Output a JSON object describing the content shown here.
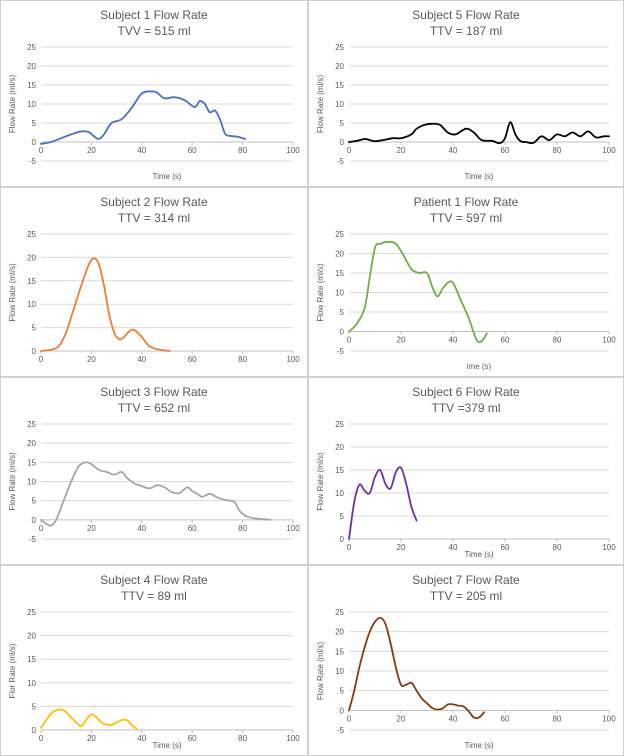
{
  "chart_data": [
    {
      "type": "line",
      "title": "Subject 1 Flow Rate",
      "subtitle": "TVV = 515 ml",
      "xlabel": "Time (s)",
      "ylabel": "Flow Rate (ml/s)",
      "xlim": [
        0,
        100
      ],
      "ylim": [
        -5,
        25
      ],
      "xticks": [
        0,
        20,
        40,
        60,
        80,
        100
      ],
      "yticks": [
        -5,
        0,
        5,
        10,
        15,
        20,
        25
      ],
      "grid": true,
      "series": [
        {
          "name": "Subject 1",
          "color": "#4472C4",
          "x": [
            0,
            4,
            8,
            12,
            16,
            19,
            21,
            23,
            25,
            28,
            32,
            36,
            40,
            44,
            46,
            49,
            53,
            57,
            61,
            63,
            65,
            67,
            69,
            71,
            73,
            75,
            78,
            81
          ],
          "y": [
            -0.5,
            0,
            1,
            2,
            2.8,
            2.6,
            1.5,
            0.8,
            2,
            5,
            6,
            9,
            12.8,
            13.3,
            13,
            11.5,
            11.8,
            11,
            9.2,
            10.8,
            10,
            7.8,
            8.3,
            6,
            2.2,
            1.6,
            1.4,
            0.8
          ]
        }
      ]
    },
    {
      "type": "line",
      "title": "Subject 5 Flow Rate",
      "subtitle": "TTV = 187 ml",
      "xlabel": "Time (s)",
      "ylabel": "Flow Rate (ml/s)",
      "xlim": [
        0,
        100
      ],
      "ylim": [
        -5,
        25
      ],
      "xticks": [
        0,
        20,
        40,
        60,
        80,
        100
      ],
      "yticks": [
        -5,
        0,
        5,
        10,
        15,
        20,
        25
      ],
      "grid": true,
      "series": [
        {
          "name": "Subject 5",
          "color": "#000000",
          "x": [
            0,
            3,
            6,
            8,
            10,
            13,
            17,
            20,
            24,
            26,
            29,
            32,
            35,
            38,
            41,
            45,
            48,
            51,
            55,
            58,
            60,
            62,
            64,
            66,
            68,
            71,
            74,
            77,
            80,
            83,
            86,
            89,
            92,
            95,
            98,
            100
          ],
          "y": [
            0,
            0.3,
            0.8,
            0.5,
            0.2,
            0.5,
            1,
            1,
            2,
            3.5,
            4.5,
            4.8,
            4.5,
            2.5,
            2,
            3.5,
            2.5,
            0.5,
            0.3,
            -0.3,
            1,
            5.2,
            2,
            0.2,
            0,
            -0.2,
            1.5,
            0.5,
            2,
            1.5,
            2.5,
            1.5,
            2.8,
            1.2,
            1.5,
            1.5
          ]
        }
      ]
    },
    {
      "type": "line",
      "title": "Subject 2 Flow Rate",
      "subtitle": "TTV =  314 ml",
      "xlabel": "",
      "ylabel": "Flow Rate (ml/s)",
      "xlim": [
        0,
        100
      ],
      "ylim": [
        0,
        25
      ],
      "xticks": [
        0,
        20,
        40,
        60,
        80,
        100
      ],
      "yticks": [
        0,
        5,
        10,
        15,
        20,
        25
      ],
      "grid": true,
      "series": [
        {
          "name": "Subject 2",
          "color": "#ED7D31",
          "x": [
            0,
            4,
            7,
            10,
            13,
            16,
            19,
            21,
            23,
            25,
            27,
            29,
            31,
            33,
            35,
            37,
            40,
            43,
            47,
            51
          ],
          "y": [
            0,
            0.3,
            1,
            4,
            9,
            14,
            18.5,
            19.8,
            18.5,
            14,
            8,
            4,
            2.5,
            3,
            4.2,
            4.5,
            3,
            1,
            0.3,
            0
          ]
        }
      ]
    },
    {
      "type": "line",
      "title": "Patient 1 Flow Rate",
      "subtitle": "TTV = 597 ml",
      "xlabel": "ime (s)",
      "ylabel": "Flow Rate (ml/s)",
      "xlim": [
        0,
        100
      ],
      "ylim": [
        -5,
        25
      ],
      "xticks": [
        0,
        20,
        40,
        60,
        80,
        100
      ],
      "yticks": [
        -5,
        0,
        5,
        10,
        15,
        20,
        25
      ],
      "grid": true,
      "series": [
        {
          "name": "Patient 1",
          "color": "#70AD47",
          "x": [
            0,
            3,
            6,
            8,
            10,
            12,
            15,
            18,
            21,
            24,
            27,
            30,
            32,
            34,
            36,
            38,
            40,
            43,
            46,
            49,
            51,
            53
          ],
          "y": [
            0,
            2,
            6,
            14,
            21.5,
            22.5,
            23,
            22.5,
            19.5,
            16,
            15,
            15,
            11.5,
            9,
            11,
            12.5,
            12.5,
            8,
            3.5,
            -2,
            -2.5,
            -0.5
          ]
        }
      ]
    },
    {
      "type": "line",
      "title": "Subject 3 Flow Rate",
      "subtitle": "TTV = 652 ml",
      "xlabel": "",
      "ylabel": "Flow Rate (ml/s)",
      "xlim": [
        0,
        100
      ],
      "ylim": [
        -5,
        25
      ],
      "xticks": [
        0,
        20,
        40,
        60,
        80,
        100
      ],
      "yticks": [
        -5,
        0,
        5,
        10,
        15,
        20,
        25
      ],
      "grid": true,
      "series": [
        {
          "name": "Subject 3",
          "color": "#A5A5A5",
          "x": [
            0,
            2,
            4,
            6,
            9,
            12,
            15,
            18,
            20,
            23,
            26,
            29,
            32,
            34,
            37,
            40,
            43,
            46,
            49,
            52,
            55,
            58,
            60,
            62,
            64,
            67,
            70,
            73,
            75,
            77,
            79,
            82,
            86,
            91
          ],
          "y": [
            0,
            -1,
            -1.5,
            0,
            5,
            10,
            14,
            15,
            14.5,
            13,
            12.5,
            11.8,
            12.5,
            11,
            9.5,
            8.8,
            8.2,
            9,
            8.5,
            7.2,
            7,
            8.5,
            7.5,
            6.8,
            6,
            6.8,
            5.8,
            5.2,
            5,
            4.5,
            2.2,
            0.8,
            0.3,
            0
          ]
        }
      ]
    },
    {
      "type": "line",
      "title": "Subject 6 Flow Rate",
      "subtitle": "TTV =379 ml",
      "xlabel": "Time (s)",
      "ylabel": "Flow Rate (ml/s)",
      "xlim": [
        0,
        100
      ],
      "ylim": [
        0,
        25
      ],
      "xticks": [
        0,
        20,
        40,
        60,
        80,
        100
      ],
      "yticks": [
        0,
        5,
        10,
        15,
        20,
        25
      ],
      "grid": true,
      "series": [
        {
          "name": "Subject 6",
          "color": "#7030A0",
          "x": [
            0,
            2,
            4,
            6,
            8,
            10,
            12,
            14,
            16,
            18,
            20,
            22,
            24,
            26
          ],
          "y": [
            0,
            8,
            11.8,
            10.5,
            10,
            13.5,
            15,
            12,
            11,
            14.5,
            15.5,
            12,
            7,
            4
          ]
        }
      ]
    },
    {
      "type": "line",
      "title": "Subject 4 Flow Rate",
      "subtitle": "TTV = 89 ml",
      "xlabel": "Time (s)",
      "ylabel": "Flor Rate (ml/s)",
      "xlim": [
        0,
        100
      ],
      "ylim": [
        0,
        25
      ],
      "xticks": [
        0,
        20,
        40,
        60,
        80,
        100
      ],
      "yticks": [
        0,
        5,
        10,
        15,
        20,
        25
      ],
      "grid": true,
      "series": [
        {
          "name": "Subject 4",
          "color": "#FFC000",
          "x": [
            0,
            2,
            4,
            6,
            8,
            10,
            12,
            14,
            16,
            18,
            20,
            22,
            24,
            26,
            28,
            30,
            32,
            34,
            36,
            38
          ],
          "y": [
            0.5,
            2,
            3.5,
            4.2,
            4.3,
            3.8,
            2.6,
            1.6,
            0.8,
            2.2,
            3.3,
            2.7,
            1.6,
            1.1,
            1.1,
            1.6,
            2.1,
            2.1,
            1.1,
            0.2
          ]
        }
      ]
    },
    {
      "type": "line",
      "title": "Subject 7 Flow Rate",
      "subtitle": "TTV = 205 ml",
      "xlabel": "Time (s)",
      "ylabel": "Flow Rate (ml/s)",
      "xlim": [
        0,
        100
      ],
      "ylim": [
        -5,
        25
      ],
      "xticks": [
        0,
        20,
        40,
        60,
        80,
        100
      ],
      "yticks": [
        -5,
        0,
        5,
        10,
        15,
        20,
        25
      ],
      "grid": true,
      "series": [
        {
          "name": "Subject 7",
          "color": "#843C0C",
          "x": [
            0,
            2,
            4,
            6,
            8,
            10,
            12,
            14,
            16,
            18,
            20,
            22,
            24,
            26,
            28,
            30,
            32,
            34,
            36,
            38,
            40,
            42,
            44,
            46,
            48,
            50,
            52
          ],
          "y": [
            0,
            5,
            11,
            16,
            20,
            22.5,
            23.5,
            22,
            17,
            11,
            6.5,
            6.5,
            7,
            5,
            3,
            1.8,
            0.6,
            0.2,
            0.5,
            1.5,
            1.5,
            1.2,
            1,
            -0.2,
            -1.8,
            -1.8,
            -0.5
          ]
        }
      ]
    }
  ]
}
